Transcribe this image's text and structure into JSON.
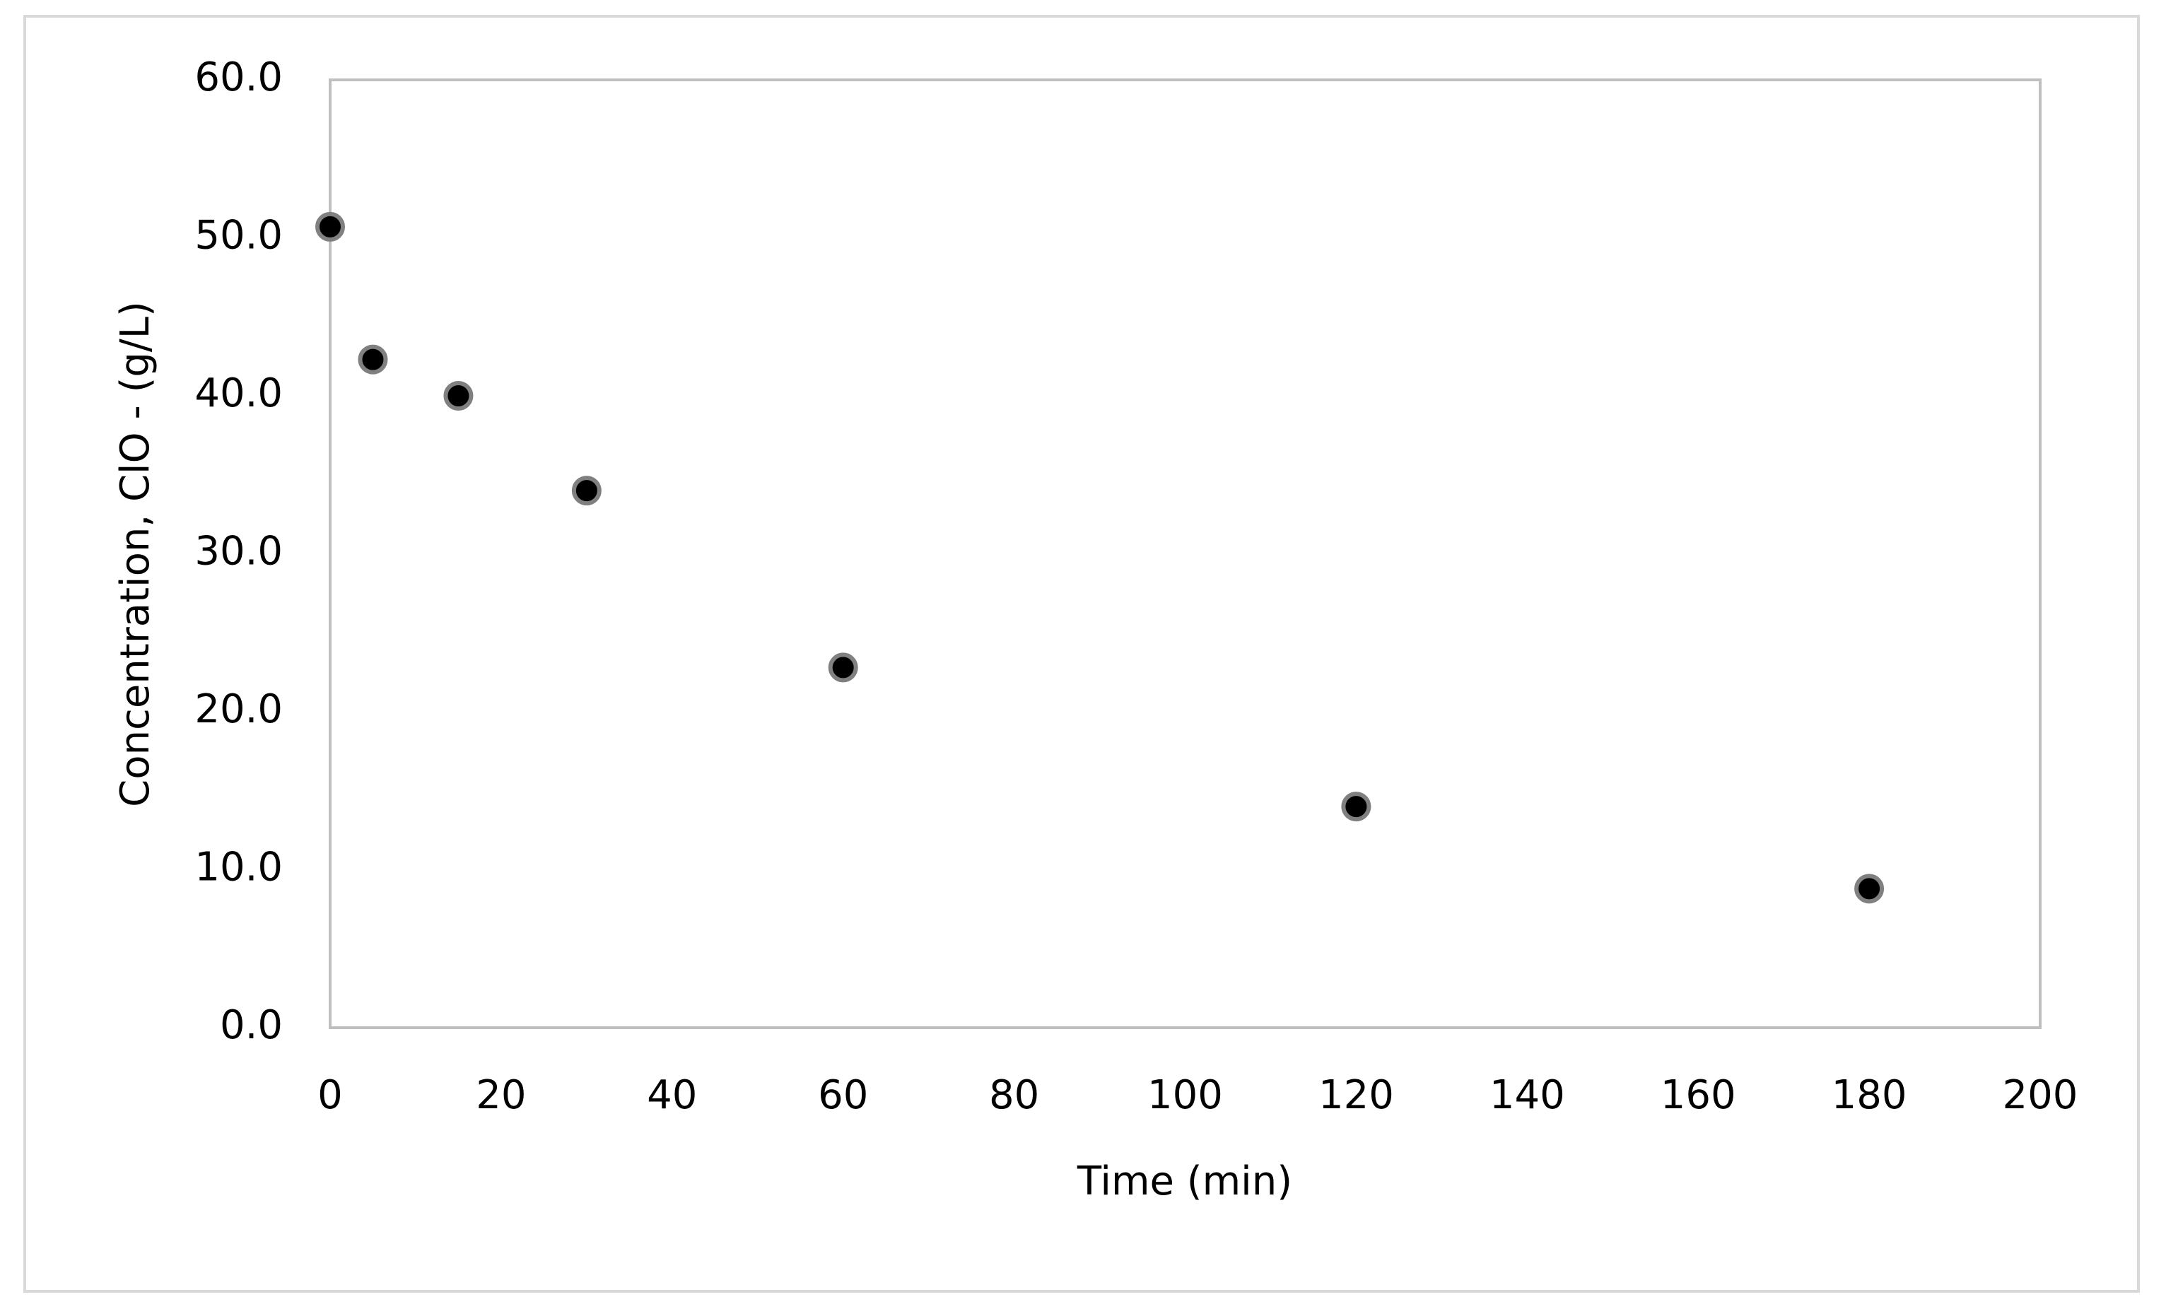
{
  "chart_data": {
    "type": "scatter",
    "xlabel": "Time (min)",
    "ylabel": "Concentration, ClO - (g/L)",
    "x": [
      0,
      5,
      15,
      30,
      60,
      120,
      180
    ],
    "series": [
      {
        "color": "#000000",
        "values": [
          50.7,
          42.3,
          40.0,
          34.0,
          22.8,
          14.0,
          8.8
        ]
      }
    ],
    "xlim": [
      0,
      200
    ],
    "xticks": [
      0,
      20,
      40,
      60,
      80,
      100,
      120,
      140,
      160,
      180,
      200
    ],
    "ylim": [
      0,
      60
    ],
    "yticks": [
      {
        "value": 0,
        "label": "0.0"
      },
      {
        "value": 10,
        "label": "10.0"
      },
      {
        "value": 20,
        "label": "20.0"
      },
      {
        "value": 30,
        "label": "30.0"
      },
      {
        "value": 40,
        "label": "40.0"
      },
      {
        "value": 50,
        "label": "50.0"
      },
      {
        "value": 60,
        "label": "60.0"
      }
    ],
    "grid": false
  }
}
